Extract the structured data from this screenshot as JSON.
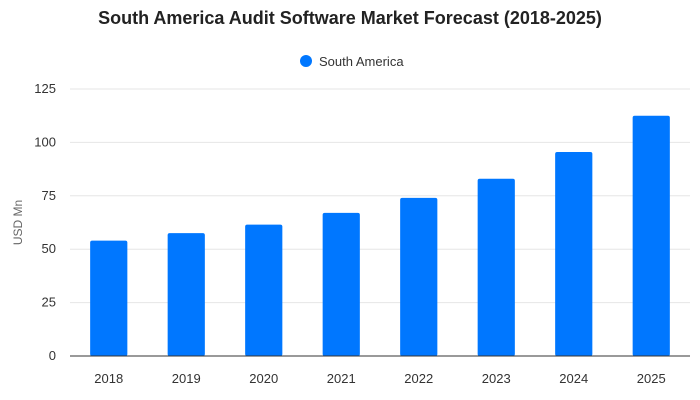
{
  "chart_data": {
    "type": "bar",
    "title": "South America Audit Software Market Forecast (2018-2025)",
    "xlabel": "",
    "ylabel": "USD Mn",
    "categories": [
      "2018",
      "2019",
      "2020",
      "2021",
      "2022",
      "2023",
      "2024",
      "2025"
    ],
    "series": [
      {
        "name": "South America",
        "color": "#0077ff",
        "values": [
          54,
          57.5,
          61.5,
          67,
          74,
          83,
          95.5,
          112.5
        ]
      }
    ],
    "ylim": [
      0,
      125
    ],
    "yticks": [
      0,
      25,
      50,
      75,
      100,
      125
    ],
    "grid": true,
    "legend": "top-center"
  }
}
